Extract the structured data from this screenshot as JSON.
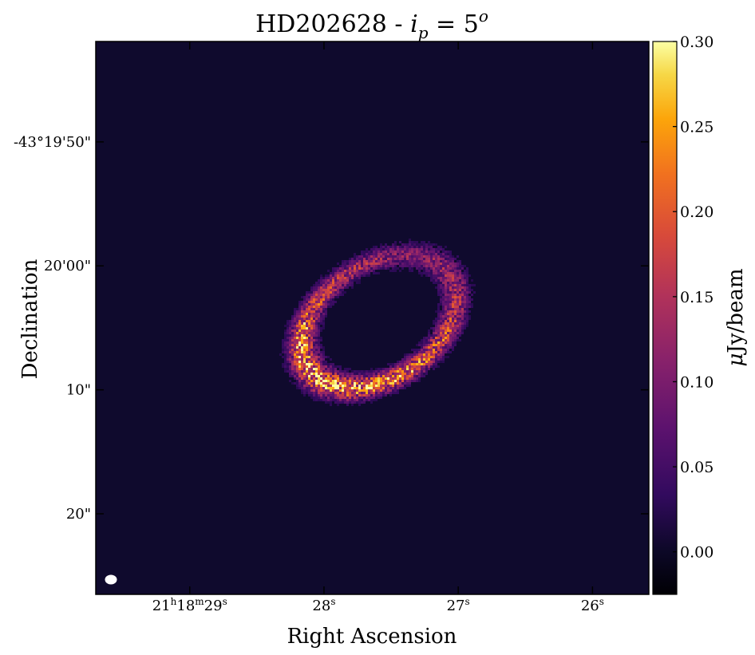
{
  "chart_data": {
    "type": "heatmap",
    "title": "HD202628 - ",
    "title_math": {
      "var": "i",
      "sub": "p",
      "rhs": " = 5",
      "sup": "o"
    },
    "xlabel": "Right Ascension",
    "ylabel": "Declination",
    "x_ticks": [
      {
        "h": "21",
        "hsup": "h",
        "m": "18",
        "msup": "m",
        "s": "29",
        "ssup": "s"
      },
      {
        "s": "28",
        "ssup": "s"
      },
      {
        "s": "27",
        "ssup": "s"
      },
      {
        "s": "26",
        "ssup": "s"
      }
    ],
    "x_tick_values_s": [
      29,
      28,
      27,
      26
    ],
    "xlim_s": [
      29.7,
      25.58
    ],
    "y_ticks": [
      "-43°19'50\"",
      "20'00\"",
      "10\"",
      "20\""
    ],
    "y_tick_offsets_arcsec": [
      -10,
      0,
      10,
      20
    ],
    "ylim_offsets_arcsec": [
      -18.1,
      26.5
    ],
    "ring": {
      "center_s": 27.6,
      "center_offset_arcsec": 4.4,
      "semi_major_arcsec": 6.8,
      "semi_minor_arcsec": 4.6,
      "position_angle_deg": -33,
      "width_arcsec": 1.5,
      "peak_intensity": 0.3
    },
    "colorbar": {
      "label_prefix": "μ",
      "label": "Jy/beam",
      "colormap": "inferno",
      "range": [
        -0.025,
        0.3
      ],
      "ticks": [
        "0.00",
        "0.05",
        "0.10",
        "0.15",
        "0.20",
        "0.25",
        "0.30"
      ],
      "tick_values": [
        0.0,
        0.05,
        0.1,
        0.15,
        0.2,
        0.25,
        0.3
      ]
    },
    "background_color": "#0f0a2d",
    "beam_color": "#ffffff"
  }
}
